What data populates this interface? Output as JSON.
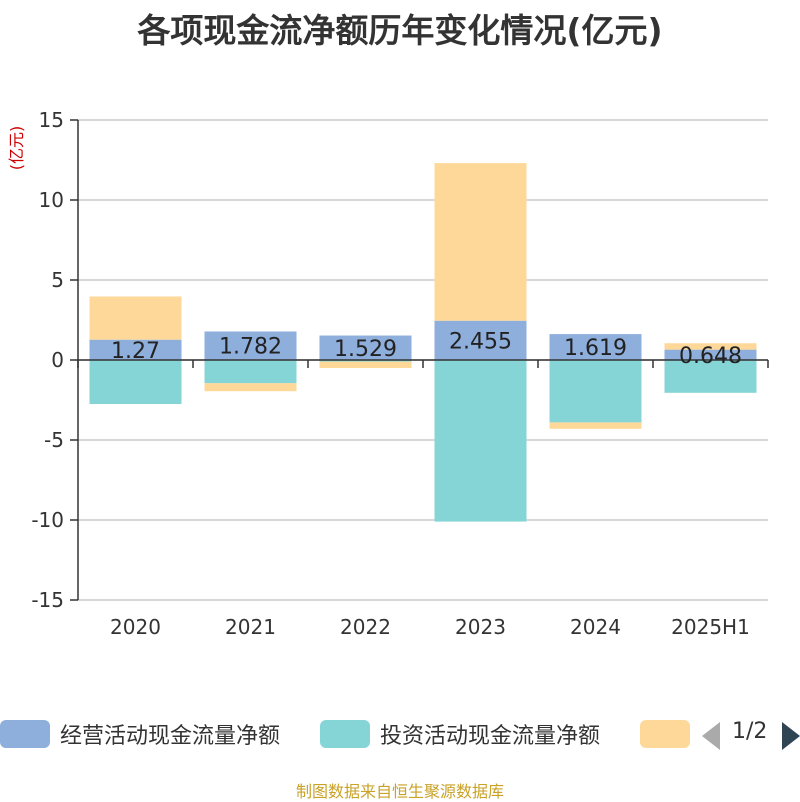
{
  "chart_data": {
    "type": "bar",
    "stacked": true,
    "title": "各项现金流净额历年变化情况(亿元)",
    "unit_label": "(亿元)",
    "categories": [
      "2020",
      "2021",
      "2022",
      "2023",
      "2024",
      "2025H1"
    ],
    "y_ticks": [
      "15",
      "10",
      "5",
      "0",
      "-5",
      "-10",
      "-15"
    ],
    "ylim": [
      -15,
      15
    ],
    "grid": true,
    "legend_position": "bottom",
    "series": [
      {
        "name": "经营活动现金流量净额",
        "color": "#8eaedc",
        "values": [
          1.27,
          1.782,
          1.529,
          2.455,
          1.619,
          0.648
        ],
        "labels": [
          "1.27",
          "1.782",
          "1.529",
          "2.455",
          "1.619",
          "0.648"
        ]
      },
      {
        "name": "投资活动现金流量净额",
        "color": "#86d5d6",
        "values": [
          -2.75,
          -1.45,
          -0.1,
          -10.1,
          -3.9,
          -2.05
        ]
      },
      {
        "name": "",
        "color": "#fdd898",
        "values": [
          2.7,
          -0.5,
          -0.4,
          9.85,
          -0.4,
          0.4
        ]
      }
    ]
  },
  "legend": {
    "page": "1/2"
  },
  "source_note": "制图数据来自恒生聚源数据库"
}
